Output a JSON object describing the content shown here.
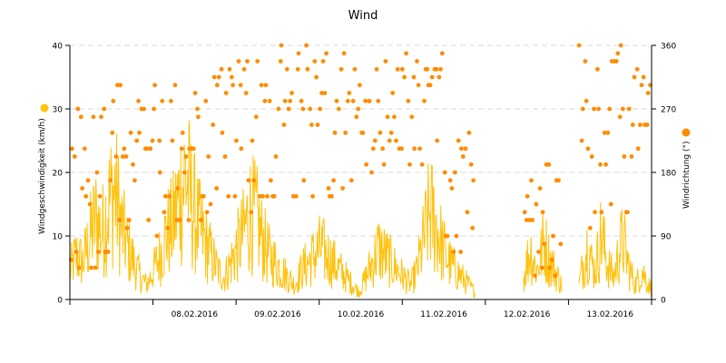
{
  "chart_data": {
    "type": "line+scatter",
    "title": "Wind",
    "ylabel_left": "Windgeschwindigkeit (km/h)",
    "ylabel_right": "Windrichtung (°)",
    "ylim_left": [
      0,
      40
    ],
    "ylim_right": [
      0,
      360
    ],
    "yticks_left": [
      "0",
      "10",
      "20",
      "30",
      "40"
    ],
    "yticks_right": [
      "0",
      "90",
      "180",
      "270",
      "360"
    ],
    "grid": true,
    "x_range_days": [
      "07.02.2016 00:00",
      "14.02.2016 00:00"
    ],
    "date_labels": [
      "08.02.2016",
      "09.02.2016",
      "10.02.2016",
      "11.02.2016",
      "12.02.2016",
      "13.02.2016"
    ],
    "colors": {
      "speed": "#FFC20E",
      "direction": "#FF8C00",
      "grid": "#d9d9d9",
      "axis": "#000000"
    },
    "series": [
      {
        "label": "Windgeschwindigkeit (km/h)",
        "kind": "line",
        "axis": "left",
        "color": "#FFC20E",
        "note": "dense 10-min readings; envelope values (km/h) per hour-segment",
        "segments": [
          {
            "start": "07.02.2016 00:00",
            "end": "11.02.2016 21:00",
            "peaks": [
              8,
              12,
              10,
              16,
              22,
              18,
              26,
              30,
              20,
              14,
              10,
              6,
              4,
              8,
              12,
              18,
              20,
              28,
              34,
              26,
              20,
              16,
              12,
              8,
              6,
              10,
              14,
              18,
              24,
              22,
              16,
              12,
              10,
              8,
              6,
              4,
              8,
              10,
              12,
              14,
              12,
              10,
              8,
              6,
              4,
              2,
              6,
              10,
              14,
              12,
              10,
              8,
              6,
              4,
              8,
              16,
              24,
              20,
              14,
              10,
              8,
              6,
              4,
              2
            ]
          },
          {
            "start": "12.02.2016 11:00",
            "end": "12.02.2016 22:00",
            "peaks": [
              6,
              10,
              14,
              10,
              8,
              12,
              16,
              12,
              10,
              8,
              6,
              4
            ]
          },
          {
            "start": "13.02.2016 03:00",
            "end": "13.02.2016 24:00",
            "peaks": [
              4,
              8,
              12,
              16,
              10,
              8,
              12,
              18,
              14,
              10,
              8,
              6,
              10,
              14,
              16,
              12,
              8,
              6,
              4,
              6,
              8,
              6,
              4,
              3
            ]
          }
        ]
      },
      {
        "label": "Windrichtung (°)",
        "kind": "scatter",
        "axis": "right",
        "color": "#FF8C00",
        "note": "direction samples (degrees), clustered bands",
        "segments": [
          {
            "start": "07.02.2016 00:00",
            "end": "07.02.2016 12:00",
            "bands": [
              270,
              240,
              150,
              60,
              200
            ]
          },
          {
            "start": "07.02.2016 12:00",
            "end": "08.02.2016 12:00",
            "bands": [
              300,
              290,
              225,
              200,
              160,
              110
            ]
          },
          {
            "start": "08.02.2016 12:00",
            "end": "09.02.2016 12:00",
            "bands": [
              320,
              300,
              270,
              220,
              160,
              135
            ]
          },
          {
            "start": "09.02.2016 12:00",
            "end": "10.02.2016 12:00",
            "bands": [
              340,
              310,
              285,
              270,
              250,
              160
            ]
          },
          {
            "start": "10.02.2016 12:00",
            "end": "11.02.2016 12:00",
            "bands": [
              335,
              310,
              290,
              270,
              225,
              200
            ]
          },
          {
            "start": "11.02.2016 12:00",
            "end": "11.02.2016 21:00",
            "bands": [
              225,
              180,
              110,
              90
            ]
          },
          {
            "start": "12.02.2016 11:00",
            "end": "12.02.2016 22:00",
            "bands": [
              180,
              155,
              135,
              110,
              90,
              45
            ]
          },
          {
            "start": "13.02.2016 03:00",
            "end": "13.02.2016 24:00",
            "bands": [
              340,
              320,
              290,
              270,
              250,
              200,
              135,
              110
            ]
          }
        ]
      }
    ]
  }
}
